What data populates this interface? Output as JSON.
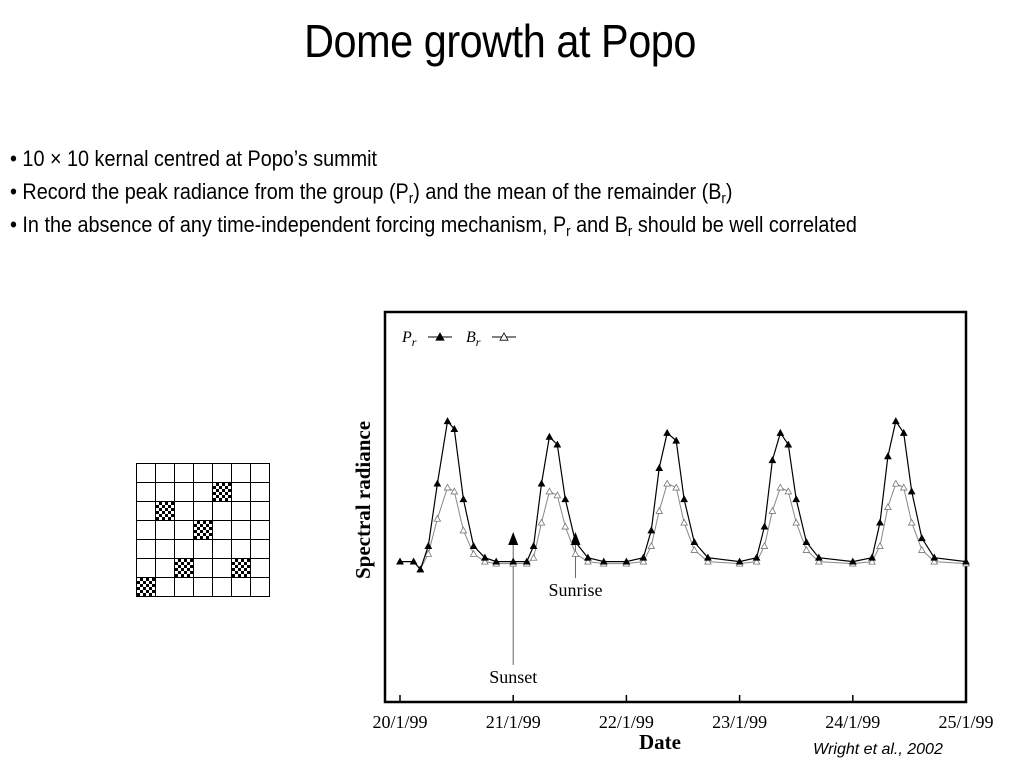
{
  "title": "Dome growth at Popo",
  "bullets": [
    {
      "text": "• 10 × 10 kernal centred at Popo’s summit"
    },
    {
      "pre": "• Record the peak radiance from the group (P",
      "s1": "r",
      "mid": ") and the mean of the remainder (B",
      "s2": "r",
      "post": ")"
    },
    {
      "pre": "• In the absence of any time-independent forcing mechanism, P",
      "s1": "r",
      "mid": " and B",
      "s2": "r",
      "post": " should be well correlated"
    }
  ],
  "kernel_grid": {
    "rows": 7,
    "cols": 7,
    "hot_cells": [
      [
        1,
        4
      ],
      [
        2,
        1
      ],
      [
        3,
        3
      ],
      [
        5,
        2
      ],
      [
        5,
        5
      ],
      [
        6,
        0
      ]
    ]
  },
  "chart_data": {
    "type": "line",
    "xlabel": "Date",
    "ylabel": "Spectral radiance",
    "x_ticks": [
      "20/1/99",
      "21/1/99",
      "22/1/99",
      "23/1/99",
      "24/1/99",
      "25/1/99"
    ],
    "x_range": [
      "20/1/99",
      "25/1/99"
    ],
    "y_ticks": [],
    "grid": false,
    "legend_position": "top-left",
    "series": [
      {
        "name": "Pr",
        "marker": "filled-triangle",
        "color": "#000000",
        "points": [
          [
            0.0,
            0.36
          ],
          [
            0.12,
            0.36
          ],
          [
            0.18,
            0.34
          ],
          [
            0.25,
            0.4
          ],
          [
            0.33,
            0.56
          ],
          [
            0.42,
            0.72
          ],
          [
            0.48,
            0.7
          ],
          [
            0.56,
            0.52
          ],
          [
            0.65,
            0.4
          ],
          [
            0.75,
            0.37
          ],
          [
            0.85,
            0.36
          ],
          [
            1.0,
            0.36
          ],
          [
            1.12,
            0.36
          ],
          [
            1.18,
            0.4
          ],
          [
            1.25,
            0.56
          ],
          [
            1.32,
            0.68
          ],
          [
            1.39,
            0.66
          ],
          [
            1.46,
            0.52
          ],
          [
            1.55,
            0.41
          ],
          [
            1.66,
            0.37
          ],
          [
            1.8,
            0.36
          ],
          [
            2.0,
            0.36
          ],
          [
            2.15,
            0.37
          ],
          [
            2.22,
            0.44
          ],
          [
            2.29,
            0.6
          ],
          [
            2.36,
            0.69
          ],
          [
            2.44,
            0.67
          ],
          [
            2.51,
            0.52
          ],
          [
            2.6,
            0.41
          ],
          [
            2.72,
            0.37
          ],
          [
            3.0,
            0.36
          ],
          [
            3.15,
            0.37
          ],
          [
            3.22,
            0.45
          ],
          [
            3.29,
            0.62
          ],
          [
            3.36,
            0.69
          ],
          [
            3.43,
            0.66
          ],
          [
            3.5,
            0.52
          ],
          [
            3.59,
            0.41
          ],
          [
            3.7,
            0.37
          ],
          [
            4.0,
            0.36
          ],
          [
            4.17,
            0.37
          ],
          [
            4.24,
            0.46
          ],
          [
            4.31,
            0.63
          ],
          [
            4.38,
            0.72
          ],
          [
            4.45,
            0.69
          ],
          [
            4.52,
            0.54
          ],
          [
            4.61,
            0.42
          ],
          [
            4.72,
            0.37
          ],
          [
            5.0,
            0.36
          ]
        ]
      },
      {
        "name": "Br",
        "marker": "open-triangle",
        "color": "#888888",
        "points": [
          [
            0.0,
            0.36
          ],
          [
            0.12,
            0.36
          ],
          [
            0.18,
            0.34
          ],
          [
            0.25,
            0.38
          ],
          [
            0.33,
            0.47
          ],
          [
            0.42,
            0.55
          ],
          [
            0.48,
            0.54
          ],
          [
            0.56,
            0.44
          ],
          [
            0.65,
            0.38
          ],
          [
            0.75,
            0.36
          ],
          [
            0.85,
            0.355
          ],
          [
            1.0,
            0.355
          ],
          [
            1.12,
            0.355
          ],
          [
            1.18,
            0.37
          ],
          [
            1.25,
            0.46
          ],
          [
            1.32,
            0.54
          ],
          [
            1.39,
            0.53
          ],
          [
            1.46,
            0.45
          ],
          [
            1.55,
            0.38
          ],
          [
            1.66,
            0.36
          ],
          [
            1.8,
            0.355
          ],
          [
            2.0,
            0.355
          ],
          [
            2.15,
            0.36
          ],
          [
            2.22,
            0.4
          ],
          [
            2.29,
            0.49
          ],
          [
            2.36,
            0.56
          ],
          [
            2.44,
            0.55
          ],
          [
            2.51,
            0.46
          ],
          [
            2.6,
            0.39
          ],
          [
            2.72,
            0.36
          ],
          [
            3.0,
            0.355
          ],
          [
            3.15,
            0.36
          ],
          [
            3.22,
            0.4
          ],
          [
            3.29,
            0.49
          ],
          [
            3.36,
            0.55
          ],
          [
            3.43,
            0.54
          ],
          [
            3.5,
            0.46
          ],
          [
            3.59,
            0.39
          ],
          [
            3.7,
            0.36
          ],
          [
            4.0,
            0.355
          ],
          [
            4.17,
            0.36
          ],
          [
            4.24,
            0.4
          ],
          [
            4.31,
            0.5
          ],
          [
            4.38,
            0.56
          ],
          [
            4.45,
            0.55
          ],
          [
            4.52,
            0.46
          ],
          [
            4.61,
            0.39
          ],
          [
            4.72,
            0.36
          ],
          [
            5.0,
            0.355
          ]
        ]
      }
    ],
    "legend": [
      {
        "sym": "P",
        "sub": "r",
        "marker": "filled-triangle"
      },
      {
        "sym": "B",
        "sub": "r",
        "marker": "open-triangle"
      }
    ],
    "annotations": [
      {
        "label": "Sunrise",
        "x": 1.55
      },
      {
        "label": "Sunset",
        "x": 1.0
      }
    ]
  },
  "citation": "Wright et al., 2002"
}
